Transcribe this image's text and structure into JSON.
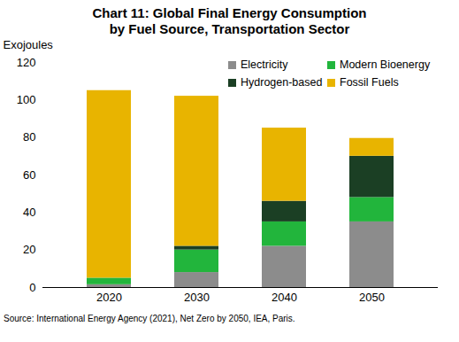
{
  "chart_data": {
    "type": "bar",
    "title": "Chart 11: Global Final Energy Consumption by Fuel Source, Transportation Sector",
    "y_label": "Exojoules",
    "source": "Source: International Energy Agency (2021), Net Zero by 2050, IEA, Paris.",
    "categories": [
      "2020",
      "2030",
      "2040",
      "2050"
    ],
    "series": [
      {
        "name": "Electricity",
        "color": "#8c8c8c",
        "values": [
          1.5,
          8,
          22,
          35
        ]
      },
      {
        "name": "Modern Bioenergy",
        "color": "#22b53c",
        "values": [
          3.5,
          12,
          13,
          13
        ]
      },
      {
        "name": "Hydrogen-based",
        "color": "#1b3f24",
        "values": [
          0,
          2,
          11,
          22
        ]
      },
      {
        "name": "Fossil Fuels",
        "color": "#e8b400",
        "values": [
          100,
          80,
          39,
          9.5
        ]
      }
    ],
    "stacked": true,
    "ylim": [
      0,
      120
    ],
    "yticks": [
      0,
      20,
      40,
      60,
      80,
      100,
      120
    ],
    "grid": false,
    "legend": "upper right"
  }
}
